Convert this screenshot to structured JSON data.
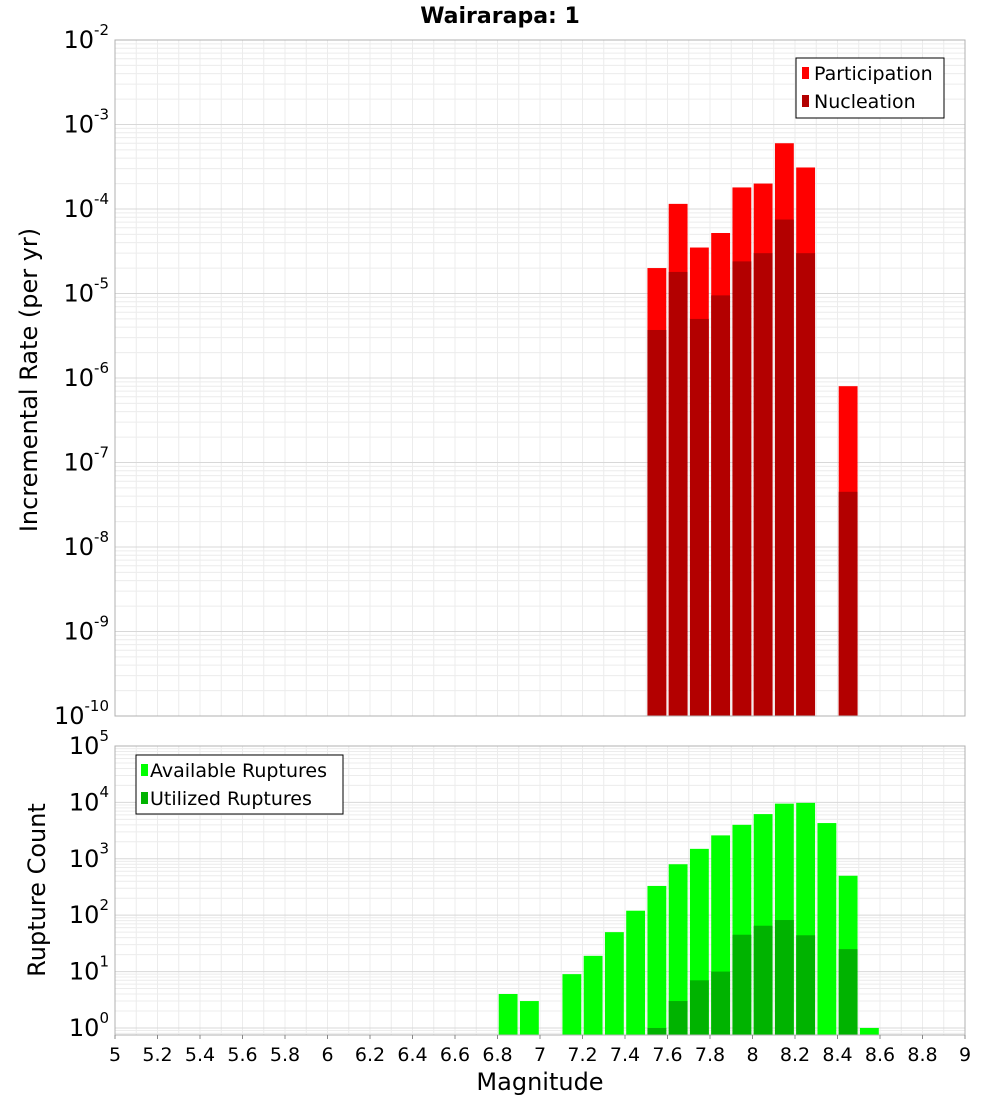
{
  "chart_data": [
    {
      "type": "bar",
      "title": "Wairarapa: 1",
      "xlabel": "",
      "ylabel": "Incremental Rate (per yr)",
      "y_scale": "log",
      "ylim": [
        1e-10,
        0.01
      ],
      "xlim": [
        5,
        9
      ],
      "bin_width": 0.1,
      "y_tick_exponents": [
        -10,
        -9,
        -8,
        -7,
        -6,
        -5,
        -4,
        -3,
        -2
      ],
      "legend_placement": "top-right",
      "series": [
        {
          "name": "Participation",
          "color": "#ff0000",
          "x": [
            7.55,
            7.65,
            7.75,
            7.85,
            7.95,
            8.05,
            8.15,
            8.25,
            8.45
          ],
          "values": [
            2e-05,
            0.000115,
            3.5e-05,
            5.2e-05,
            0.00018,
            0.0002,
            0.0006,
            0.00031,
            8e-07
          ]
        },
        {
          "name": "Nucleation",
          "color": "#b30000",
          "x": [
            7.55,
            7.65,
            7.75,
            7.85,
            7.95,
            8.05,
            8.15,
            8.25,
            8.45
          ],
          "values": [
            3.7e-06,
            1.8e-05,
            5e-06,
            9.5e-06,
            2.4e-05,
            3e-05,
            7.5e-05,
            3e-05,
            4.5e-08
          ]
        }
      ]
    },
    {
      "type": "bar",
      "title": "",
      "xlabel": "Magnitude",
      "ylabel": "Rupture Count",
      "y_scale": "log",
      "ylim": [
        0.75,
        100000
      ],
      "xlim": [
        5,
        9
      ],
      "bin_width": 0.1,
      "y_tick_exponents": [
        0,
        1,
        2,
        3,
        4,
        5
      ],
      "x_ticks": [
        "5",
        "5.2",
        "5.4",
        "5.6",
        "5.8",
        "6",
        "6.2",
        "6.4",
        "6.6",
        "6.8",
        "7",
        "7.2",
        "7.4",
        "7.6",
        "7.8",
        "8",
        "8.2",
        "8.4",
        "8.6",
        "8.8",
        "9"
      ],
      "legend_placement": "top-left",
      "series": [
        {
          "name": "Available Ruptures",
          "color": "#00ff00",
          "x": [
            6.85,
            6.95,
            7.15,
            7.25,
            7.35,
            7.45,
            7.55,
            7.65,
            7.75,
            7.85,
            7.95,
            8.05,
            8.15,
            8.25,
            8.35,
            8.45,
            8.55
          ],
          "values": [
            4,
            3,
            9,
            19,
            50,
            120,
            330,
            800,
            1500,
            2600,
            4000,
            6200,
            9500,
            9800,
            4300,
            500,
            1
          ]
        },
        {
          "name": "Utilized Ruptures",
          "color": "#00b300",
          "x": [
            7.55,
            7.65,
            7.75,
            7.85,
            7.95,
            8.05,
            8.15,
            8.25,
            8.45
          ],
          "values": [
            1,
            3,
            7,
            10,
            45,
            65,
            82,
            44,
            25
          ]
        }
      ]
    }
  ]
}
